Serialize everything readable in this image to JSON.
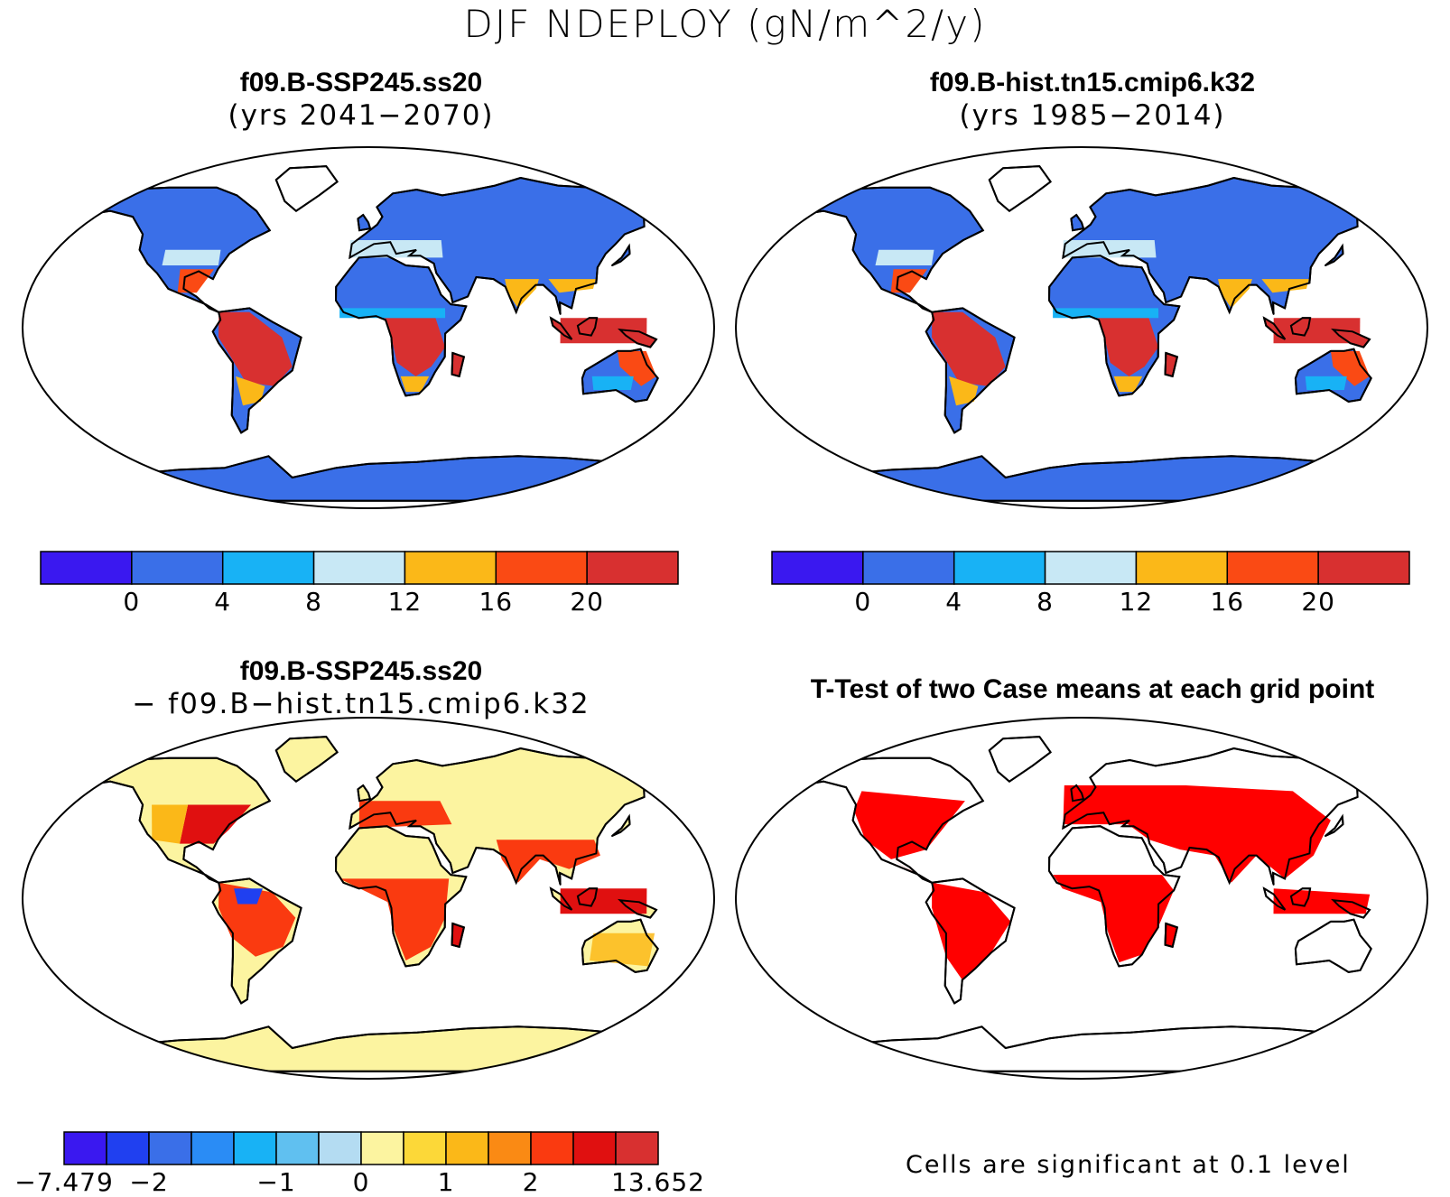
{
  "title": "DJF NDEPLOY (gN/m^2/y)",
  "panels": [
    {
      "title_line1": "f09.B-SSP245.ss20",
      "title_line2": "(yrs 2041−2070)",
      "map_kind": "mean"
    },
    {
      "title_line1": "f09.B-hist.tn15.cmip6.k32",
      "title_line2": "(yrs 1985−2014)",
      "map_kind": "mean"
    },
    {
      "title_line1": "f09.B-SSP245.ss20",
      "title_line2": "− f09.B−hist.tn15.cmip6.k32",
      "map_kind": "difference"
    },
    {
      "title_line1": "T-Test of two Case means at each grid point",
      "title_line2": "",
      "map_kind": "significance"
    }
  ],
  "colorbars": {
    "mean": {
      "colors": [
        "#3a18f0",
        "#3a6fe8",
        "#18b2f5",
        "#c8e8f5",
        "#fbb818",
        "#fa4a14",
        "#d83030"
      ],
      "labels": [
        "0",
        "4",
        "8",
        "12",
        "16",
        "20"
      ]
    },
    "difference": {
      "colors": [
        "#3a18f0",
        "#2040f0",
        "#3a6fe8",
        "#2a8cf5",
        "#18b2f5",
        "#60c0f0",
        "#b4dcf2",
        "#fcf4a0",
        "#fcd838",
        "#fbb818",
        "#fa8a14",
        "#fa3a10",
        "#e01010",
        "#d83030"
      ],
      "labels": [
        "−7.479",
        "−2",
        "−1",
        "0",
        "1",
        "2",
        "13.652"
      ]
    }
  },
  "significance_note": "Cells are significant at 0.1 level",
  "legend_colors": {
    "land_base": "#3a6fe8",
    "diff_base": "#fcf4a0",
    "significant": "#ff0000"
  }
}
